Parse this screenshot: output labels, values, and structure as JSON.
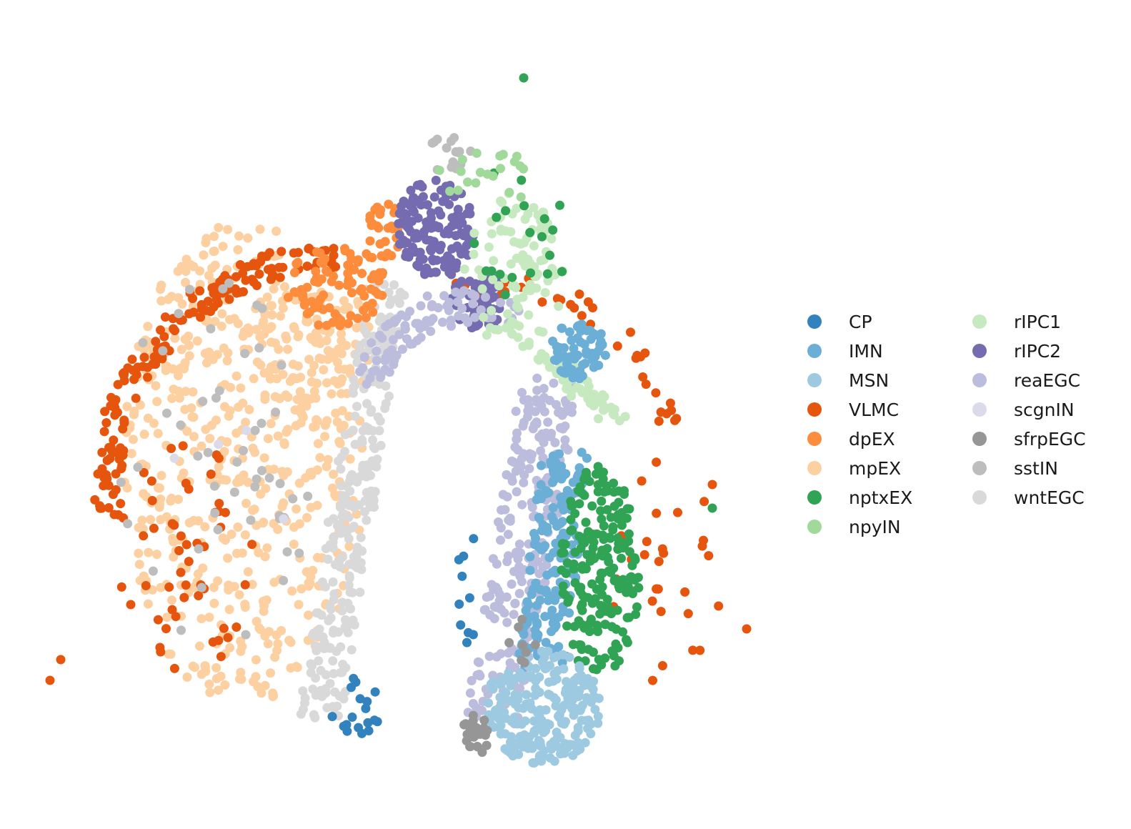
{
  "chart_data": {
    "type": "scatter",
    "title": "",
    "xlabel": "",
    "ylabel": "",
    "axes_visible": false,
    "grid": false,
    "legend_placement": "right",
    "legend_columns": 2,
    "xlim": [
      0,
      100
    ],
    "ylim": [
      0,
      100
    ],
    "series": [
      {
        "name": "CP",
        "color": "#3182bd",
        "points": []
      },
      {
        "name": "IMN",
        "color": "#6baed6",
        "points": []
      },
      {
        "name": "MSN",
        "color": "#9ecae1",
        "points": []
      },
      {
        "name": "VLMC",
        "color": "#e6550d",
        "points": []
      },
      {
        "name": "dpEX",
        "color": "#fd8d3c",
        "points": []
      },
      {
        "name": "mpEX",
        "color": "#fdd0a2",
        "points": []
      },
      {
        "name": "nptxEX",
        "color": "#31a354",
        "points": []
      },
      {
        "name": "npyIN",
        "color": "#a1d99b",
        "points": []
      },
      {
        "name": "rIPC1",
        "color": "#c7e9c0",
        "points": []
      },
      {
        "name": "rIPC2",
        "color": "#756bb1",
        "points": []
      },
      {
        "name": "reaEGC",
        "color": "#bcbddc",
        "points": []
      },
      {
        "name": "scgnIN",
        "color": "#dadaeb",
        "points": []
      },
      {
        "name": "sfrpEGC",
        "color": "#969696",
        "points": []
      },
      {
        "name": "sstIN",
        "color": "#bdbdbd",
        "points": []
      },
      {
        "name": "wntEGC",
        "color": "#d9d9d9",
        "points": []
      }
    ]
  }
}
